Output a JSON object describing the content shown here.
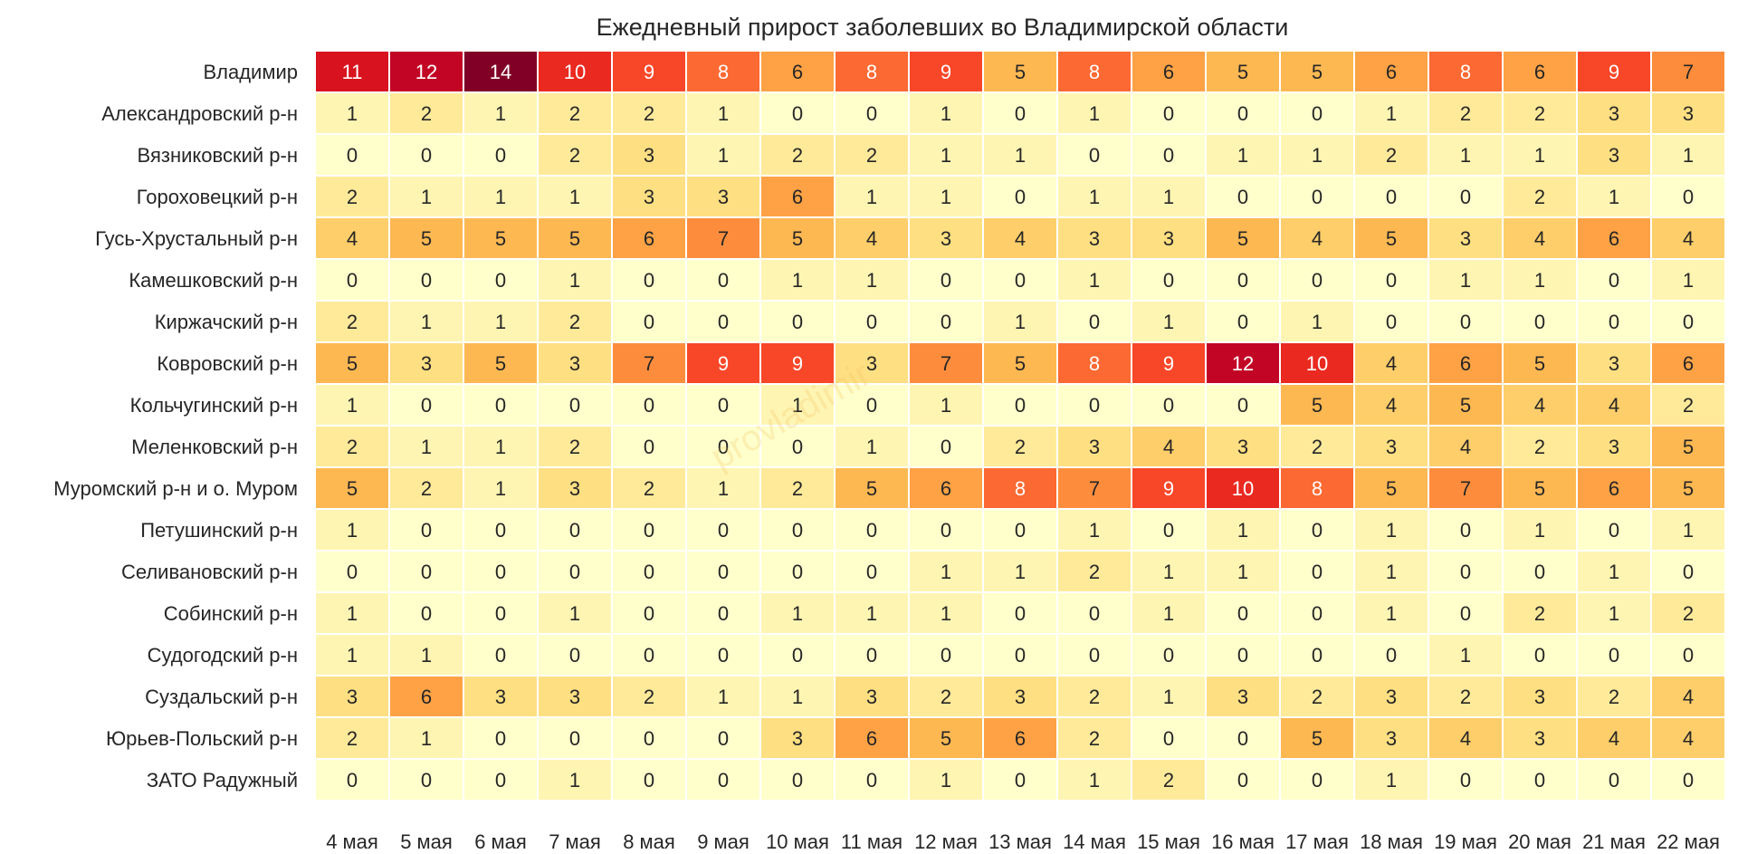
{
  "chart_data": {
    "type": "heatmap",
    "title": "Ежедневный прирост заболевших во Владимирской области",
    "watermark": "provladimir",
    "x": [
      "4 мая",
      "5 мая",
      "6 мая",
      "7 мая",
      "8 мая",
      "9 мая",
      "10 мая",
      "11 мая",
      "12 мая",
      "13 мая",
      "14 мая",
      "15 мая",
      "16 мая",
      "17 мая",
      "18 мая",
      "19 мая",
      "20 мая",
      "21 мая",
      "22 мая"
    ],
    "y": [
      "Владимир",
      "Александровский р-н",
      "Вязниковский р-н",
      "Гороховецкий р-н",
      "Гусь-Хрустальный р-н",
      "Камешковский р-н",
      "Киржачский р-н",
      "Ковровский р-н",
      "Кольчугинский р-н",
      "Меленковский р-н",
      "Муромский р-н и о. Муром",
      "Петушинский р-н",
      "Селивановский р-н",
      "Собинский р-н",
      "Судогодский р-н",
      "Суздальский р-н",
      "Юрьев-Польский р-н",
      "ЗАТО Радужный"
    ],
    "values": [
      [
        11,
        12,
        14,
        10,
        9,
        8,
        6,
        8,
        9,
        5,
        8,
        6,
        5,
        5,
        6,
        8,
        6,
        9,
        7
      ],
      [
        1,
        2,
        1,
        2,
        2,
        1,
        0,
        0,
        1,
        0,
        1,
        0,
        0,
        0,
        1,
        2,
        2,
        3,
        3
      ],
      [
        0,
        0,
        0,
        2,
        3,
        1,
        2,
        2,
        1,
        1,
        0,
        0,
        1,
        1,
        2,
        1,
        1,
        3,
        1
      ],
      [
        2,
        1,
        1,
        1,
        3,
        3,
        6,
        1,
        1,
        0,
        1,
        1,
        0,
        0,
        0,
        0,
        2,
        1,
        0
      ],
      [
        4,
        5,
        5,
        5,
        6,
        7,
        5,
        4,
        3,
        4,
        3,
        3,
        5,
        4,
        5,
        3,
        4,
        6,
        4
      ],
      [
        0,
        0,
        0,
        1,
        0,
        0,
        1,
        1,
        0,
        0,
        1,
        0,
        0,
        0,
        0,
        1,
        1,
        0,
        1
      ],
      [
        2,
        1,
        1,
        2,
        0,
        0,
        0,
        0,
        0,
        1,
        0,
        1,
        0,
        1,
        0,
        0,
        0,
        0,
        0
      ],
      [
        5,
        3,
        5,
        3,
        7,
        9,
        9,
        3,
        7,
        5,
        8,
        9,
        12,
        10,
        4,
        6,
        5,
        3,
        6
      ],
      [
        1,
        0,
        0,
        0,
        0,
        0,
        1,
        0,
        1,
        0,
        0,
        0,
        0,
        5,
        4,
        5,
        4,
        4,
        2
      ],
      [
        2,
        1,
        1,
        2,
        0,
        0,
        0,
        1,
        0,
        2,
        3,
        4,
        3,
        2,
        3,
        4,
        2,
        3,
        5
      ],
      [
        5,
        2,
        1,
        3,
        2,
        1,
        2,
        5,
        6,
        8,
        7,
        9,
        10,
        8,
        5,
        7,
        5,
        6,
        5
      ],
      [
        1,
        0,
        0,
        0,
        0,
        0,
        0,
        0,
        0,
        0,
        1,
        0,
        1,
        0,
        1,
        0,
        1,
        0,
        1
      ],
      [
        0,
        0,
        0,
        0,
        0,
        0,
        0,
        0,
        1,
        1,
        2,
        1,
        1,
        0,
        1,
        0,
        0,
        1,
        0
      ],
      [
        1,
        0,
        0,
        1,
        0,
        0,
        1,
        1,
        1,
        0,
        0,
        1,
        0,
        0,
        1,
        0,
        2,
        1,
        2
      ],
      [
        1,
        1,
        0,
        0,
        0,
        0,
        0,
        0,
        0,
        0,
        0,
        0,
        0,
        0,
        0,
        1,
        0,
        0,
        0
      ],
      [
        3,
        6,
        3,
        3,
        2,
        1,
        1,
        3,
        2,
        3,
        2,
        1,
        3,
        2,
        3,
        2,
        3,
        2,
        4
      ],
      [
        2,
        1,
        0,
        0,
        0,
        0,
        3,
        6,
        5,
        6,
        2,
        0,
        0,
        5,
        3,
        4,
        3,
        4,
        4
      ],
      [
        0,
        0,
        0,
        1,
        0,
        0,
        0,
        0,
        1,
        0,
        1,
        2,
        0,
        0,
        1,
        0,
        0,
        0,
        0
      ]
    ],
    "vmin": 0,
    "vmax": 14,
    "colormap": "YlOrRd",
    "grid": false
  }
}
